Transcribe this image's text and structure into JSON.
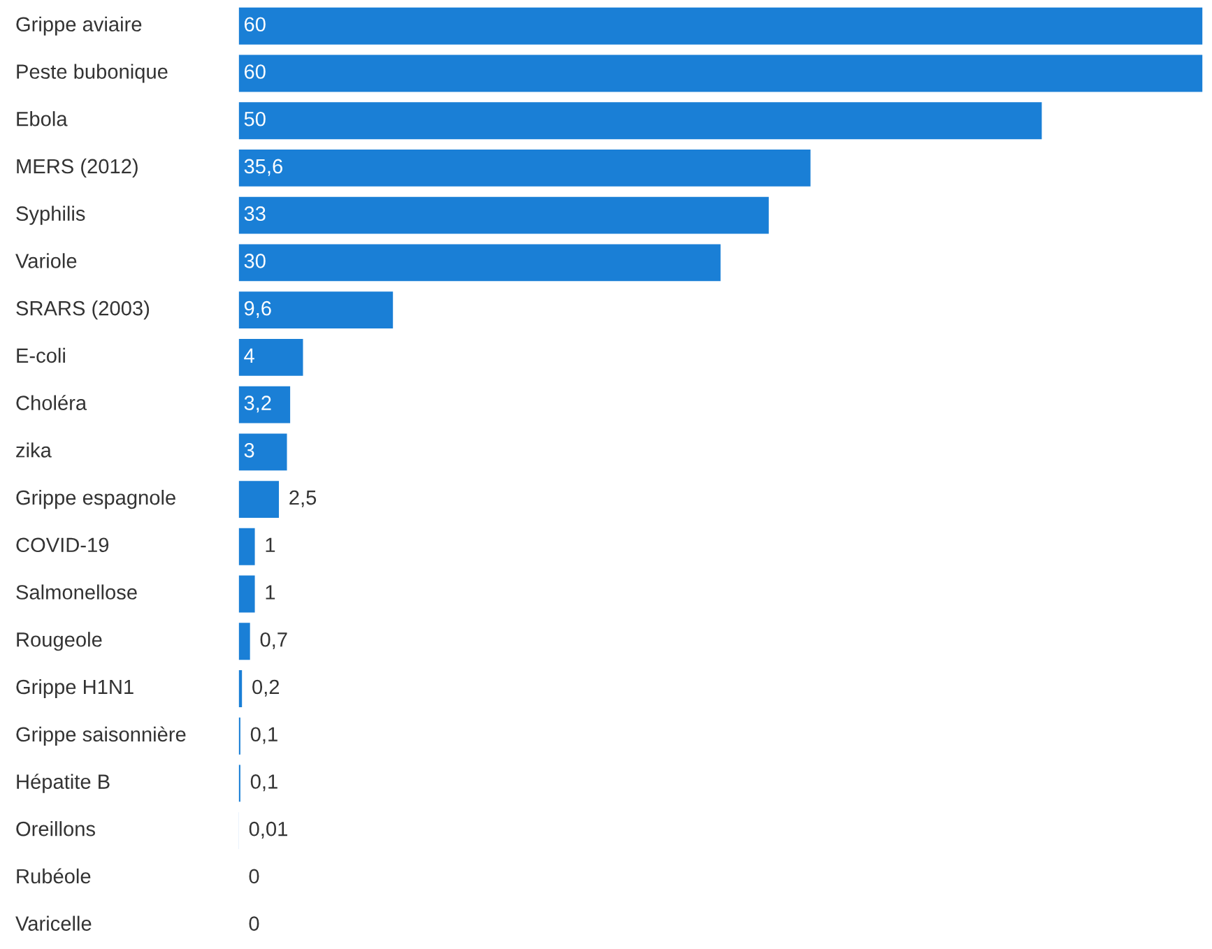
{
  "chart_data": {
    "type": "bar",
    "orientation": "horizontal",
    "categories": [
      "Grippe aviaire",
      "Peste bubonique",
      "Ebola",
      "MERS (2012)",
      "Syphilis",
      "Variole",
      "SRARS (2003)",
      "E-coli",
      "Choléra",
      "zika",
      "Grippe espagnole",
      "COVID-19",
      "Salmonellose",
      "Rougeole",
      "Grippe H1N1",
      "Grippe saisonnière",
      "Hépatite B",
      "Oreillons",
      "Rubéole",
      "Varicelle"
    ],
    "values": [
      60,
      60,
      50,
      35.6,
      33,
      30,
      9.6,
      4,
      3.2,
      3,
      2.5,
      1,
      1,
      0.7,
      0.2,
      0.1,
      0.1,
      0.01,
      0,
      0
    ],
    "value_labels": [
      "60",
      "60",
      "50",
      "35,6",
      "33",
      "30",
      "9,6",
      "4",
      "3,2",
      "3",
      "2,5",
      "1",
      "1",
      "0,7",
      "0,2",
      "0,1",
      "0,1",
      "0,01",
      "0",
      "0"
    ],
    "color": "#1a7fd6"
  }
}
